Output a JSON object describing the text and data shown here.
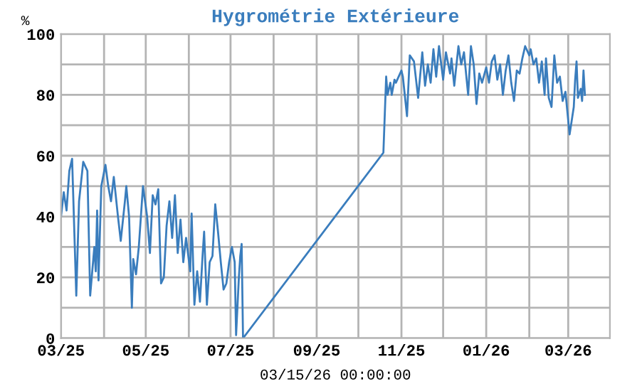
{
  "chart_data": {
    "type": "line",
    "title": "Hygrométrie Extérieure",
    "xlabel": "03/15/26 00:00:00",
    "ylabel": "%",
    "grid": true,
    "color": "#3a7dbd",
    "x": [
      "2025-03-01",
      "2025-03-03",
      "2025-03-05",
      "2025-03-07",
      "2025-03-09",
      "2025-03-12",
      "2025-03-14",
      "2025-03-17",
      "2025-03-20",
      "2025-03-22",
      "2025-03-25",
      "2025-03-26",
      "2025-03-27",
      "2025-03-28",
      "2025-03-30",
      "2025-04-02",
      "2025-04-04",
      "2025-04-06",
      "2025-04-08",
      "2025-04-11",
      "2025-04-13",
      "2025-04-16",
      "2025-04-17",
      "2025-04-19",
      "2025-04-21",
      "2025-04-22",
      "2025-04-24",
      "2025-04-26",
      "2025-04-29",
      "2025-05-02",
      "2025-05-04",
      "2025-05-06",
      "2025-05-08",
      "2025-05-10",
      "2025-05-12",
      "2025-05-14",
      "2025-05-16",
      "2025-05-18",
      "2025-05-20",
      "2025-05-22",
      "2025-05-24",
      "2025-05-26",
      "2025-05-28",
      "2025-05-30",
      "2025-06-02",
      "2025-06-03",
      "2025-06-05",
      "2025-06-07",
      "2025-06-09",
      "2025-06-11",
      "2025-06-12",
      "2025-06-14",
      "2025-06-16",
      "2025-06-18",
      "2025-06-20",
      "2025-06-22",
      "2025-06-24",
      "2025-06-26",
      "2025-06-28",
      "2025-06-30",
      "2025-07-02",
      "2025-07-04",
      "2025-07-05",
      "2025-07-07",
      "2025-07-08",
      "2025-07-09",
      "2025-07-10",
      "2025-10-19",
      "2025-10-21",
      "2025-10-22",
      "2025-10-24",
      "2025-10-25",
      "2025-10-27",
      "2025-10-28",
      "2025-11-01",
      "2025-11-02",
      "2025-11-05",
      "2025-11-07",
      "2025-11-10",
      "2025-11-13",
      "2025-11-16",
      "2025-11-18",
      "2025-11-20",
      "2025-11-22",
      "2025-11-24",
      "2025-11-26",
      "2025-11-28",
      "2025-12-01",
      "2025-12-03",
      "2025-12-06",
      "2025-12-07",
      "2025-12-09",
      "2025-12-12",
      "2025-12-14",
      "2025-12-16",
      "2025-12-19",
      "2025-12-21",
      "2025-12-23",
      "2025-12-25",
      "2025-12-27",
      "2025-12-29",
      "2026-01-01",
      "2026-01-03",
      "2026-01-05",
      "2026-01-07",
      "2026-01-09",
      "2026-01-11",
      "2026-01-13",
      "2026-01-15",
      "2026-01-17",
      "2026-01-19",
      "2026-01-21",
      "2026-01-23",
      "2026-01-25",
      "2026-01-27",
      "2026-01-29",
      "2026-02-01",
      "2026-02-02",
      "2026-02-04",
      "2026-02-06",
      "2026-02-08",
      "2026-02-10",
      "2026-02-12",
      "2026-02-13",
      "2026-02-15",
      "2026-02-17",
      "2026-02-19",
      "2026-02-21",
      "2026-02-23",
      "2026-02-25",
      "2026-02-27",
      "2026-03-02",
      "2026-03-03",
      "2026-03-05",
      "2026-03-06",
      "2026-03-07",
      "2026-03-08",
      "2026-03-10",
      "2026-03-11",
      "2026-03-12",
      "2026-03-13"
    ],
    "values": [
      40,
      48,
      42,
      55,
      59,
      14,
      45,
      58,
      55,
      14,
      30,
      22,
      42,
      19,
      50,
      57,
      50,
      45,
      53,
      40,
      32,
      45,
      50,
      40,
      10,
      26,
      21,
      30,
      50,
      40,
      28,
      47,
      44,
      49,
      18,
      20,
      37,
      45,
      33,
      47,
      28,
      39,
      25,
      33,
      22,
      41,
      11,
      22,
      12,
      28,
      35,
      11,
      25,
      27,
      44,
      35,
      25,
      16,
      18,
      25,
      30,
      25,
      1,
      20,
      27,
      31,
      0,
      61,
      86,
      80,
      84,
      80,
      85,
      84,
      88,
      86,
      73,
      93,
      91,
      79,
      94,
      83,
      90,
      84,
      95,
      86,
      96,
      85,
      94,
      87,
      92,
      83,
      96,
      90,
      94,
      80,
      96,
      90,
      77,
      87,
      84,
      89,
      84,
      91,
      93,
      85,
      90,
      80,
      88,
      93,
      84,
      78,
      88,
      87,
      92,
      96,
      93,
      95,
      90,
      92,
      84,
      91,
      80,
      92,
      79,
      76,
      93,
      84,
      86,
      78,
      81,
      67,
      70,
      76,
      85,
      91,
      79,
      82,
      78,
      88,
      80
    ],
    "xlim": [
      "2025-03-01",
      "2026-03-31"
    ],
    "xticks": [
      {
        "value": "2025-03-01",
        "label": "03/25"
      },
      {
        "value": "2025-04-01",
        "label": null
      },
      {
        "value": "2025-05-01",
        "label": "05/25"
      },
      {
        "value": "2025-06-01",
        "label": null
      },
      {
        "value": "2025-07-01",
        "label": "07/25"
      },
      {
        "value": "2025-08-01",
        "label": null
      },
      {
        "value": "2025-09-01",
        "label": "09/25"
      },
      {
        "value": "2025-10-01",
        "label": null
      },
      {
        "value": "2025-11-01",
        "label": "11/25"
      },
      {
        "value": "2025-12-01",
        "label": null
      },
      {
        "value": "2026-01-01",
        "label": "01/26"
      },
      {
        "value": "2026-02-01",
        "label": null
      },
      {
        "value": "2026-03-01",
        "label": "03/26"
      }
    ],
    "ylim": [
      0,
      100
    ],
    "yticks": [
      0,
      {
        "value": 10,
        "label": null
      },
      20,
      {
        "value": 30,
        "label": null
      },
      40,
      {
        "value": 50,
        "label": null
      },
      60,
      {
        "value": 70,
        "label": null
      },
      80,
      {
        "value": 90,
        "label": null
      },
      100
    ]
  }
}
